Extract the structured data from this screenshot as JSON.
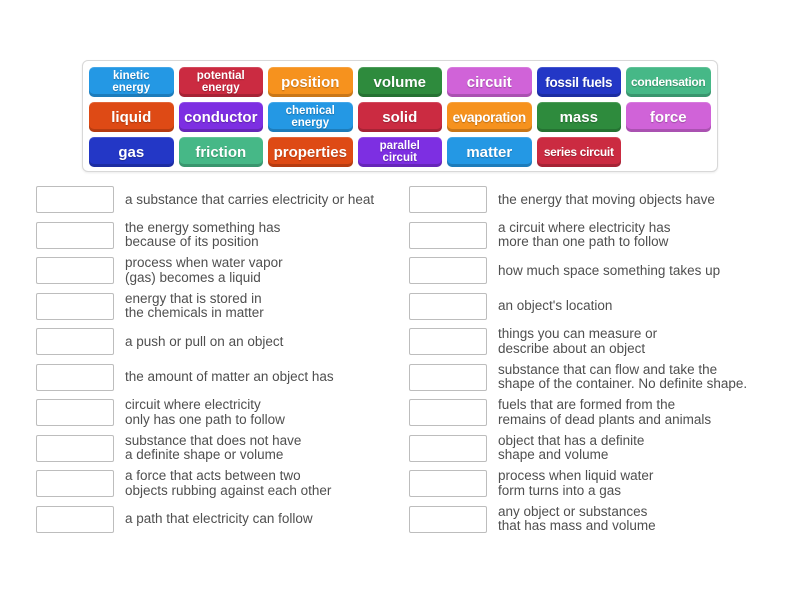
{
  "word_bank": {
    "tiles": [
      {
        "label": "kinetic\nenergy",
        "color": "#2498e4"
      },
      {
        "label": "potential\nenergy",
        "color": "#cb2b41"
      },
      {
        "label": "position",
        "color": "#f6921e"
      },
      {
        "label": "volume",
        "color": "#2e8b3d"
      },
      {
        "label": "circuit",
        "color": "#d063d8"
      },
      {
        "label": "fossil fuels",
        "color": "#2337c6"
      },
      {
        "label": "condensation",
        "color": "#46b887"
      },
      {
        "label": "liquid",
        "color": "#de4a15"
      },
      {
        "label": "conductor",
        "color": "#7d2fe2"
      },
      {
        "label": "chemical\nenergy",
        "color": "#2498e4"
      },
      {
        "label": "solid",
        "color": "#cb2b41"
      },
      {
        "label": "evaporation",
        "color": "#f6921e"
      },
      {
        "label": "mass",
        "color": "#2e8b3d"
      },
      {
        "label": "force",
        "color": "#d063d8"
      },
      {
        "label": "gas",
        "color": "#2337c6"
      },
      {
        "label": "friction",
        "color": "#46b887"
      },
      {
        "label": "properties",
        "color": "#de4a15"
      },
      {
        "label": "parallel\ncircuit",
        "color": "#7d2fe2"
      },
      {
        "label": "matter",
        "color": "#2498e4"
      },
      {
        "label": "series circuit",
        "color": "#cb2b41"
      }
    ]
  },
  "definitions": {
    "left": [
      "a substance that carries electricity or heat",
      "the energy something has\nbecause of its position",
      "process when water vapor\n(gas) becomes a liquid",
      "energy that is stored in\nthe chemicals in matter",
      "a push or pull on an object",
      "the amount of matter an object has",
      "circuit where electricity\nonly has one path to follow",
      "substance that does not have\na definite shape or volume",
      "a force that acts between two\nobjects rubbing against each other",
      "a path that electricity can follow"
    ],
    "right": [
      "the energy that moving objects have",
      "a circuit where electricity has\nmore than one path to follow",
      "how much space something takes up",
      "an object's location",
      "things you can measure or\ndescribe about an object",
      "substance that can flow and take the\nshape of the container. No definite shape.",
      "fuels that are formed from the\nremains of dead plants and animals",
      "object that has a definite\nshape and volume",
      "process when liquid water\nform turns into a gas",
      "any object or substances\nthat has mass and volume"
    ]
  },
  "colors": {
    "panel_border": "#d8d8d8",
    "slot_border": "#bdbdbd",
    "definition_text": "#4f4f4f"
  }
}
